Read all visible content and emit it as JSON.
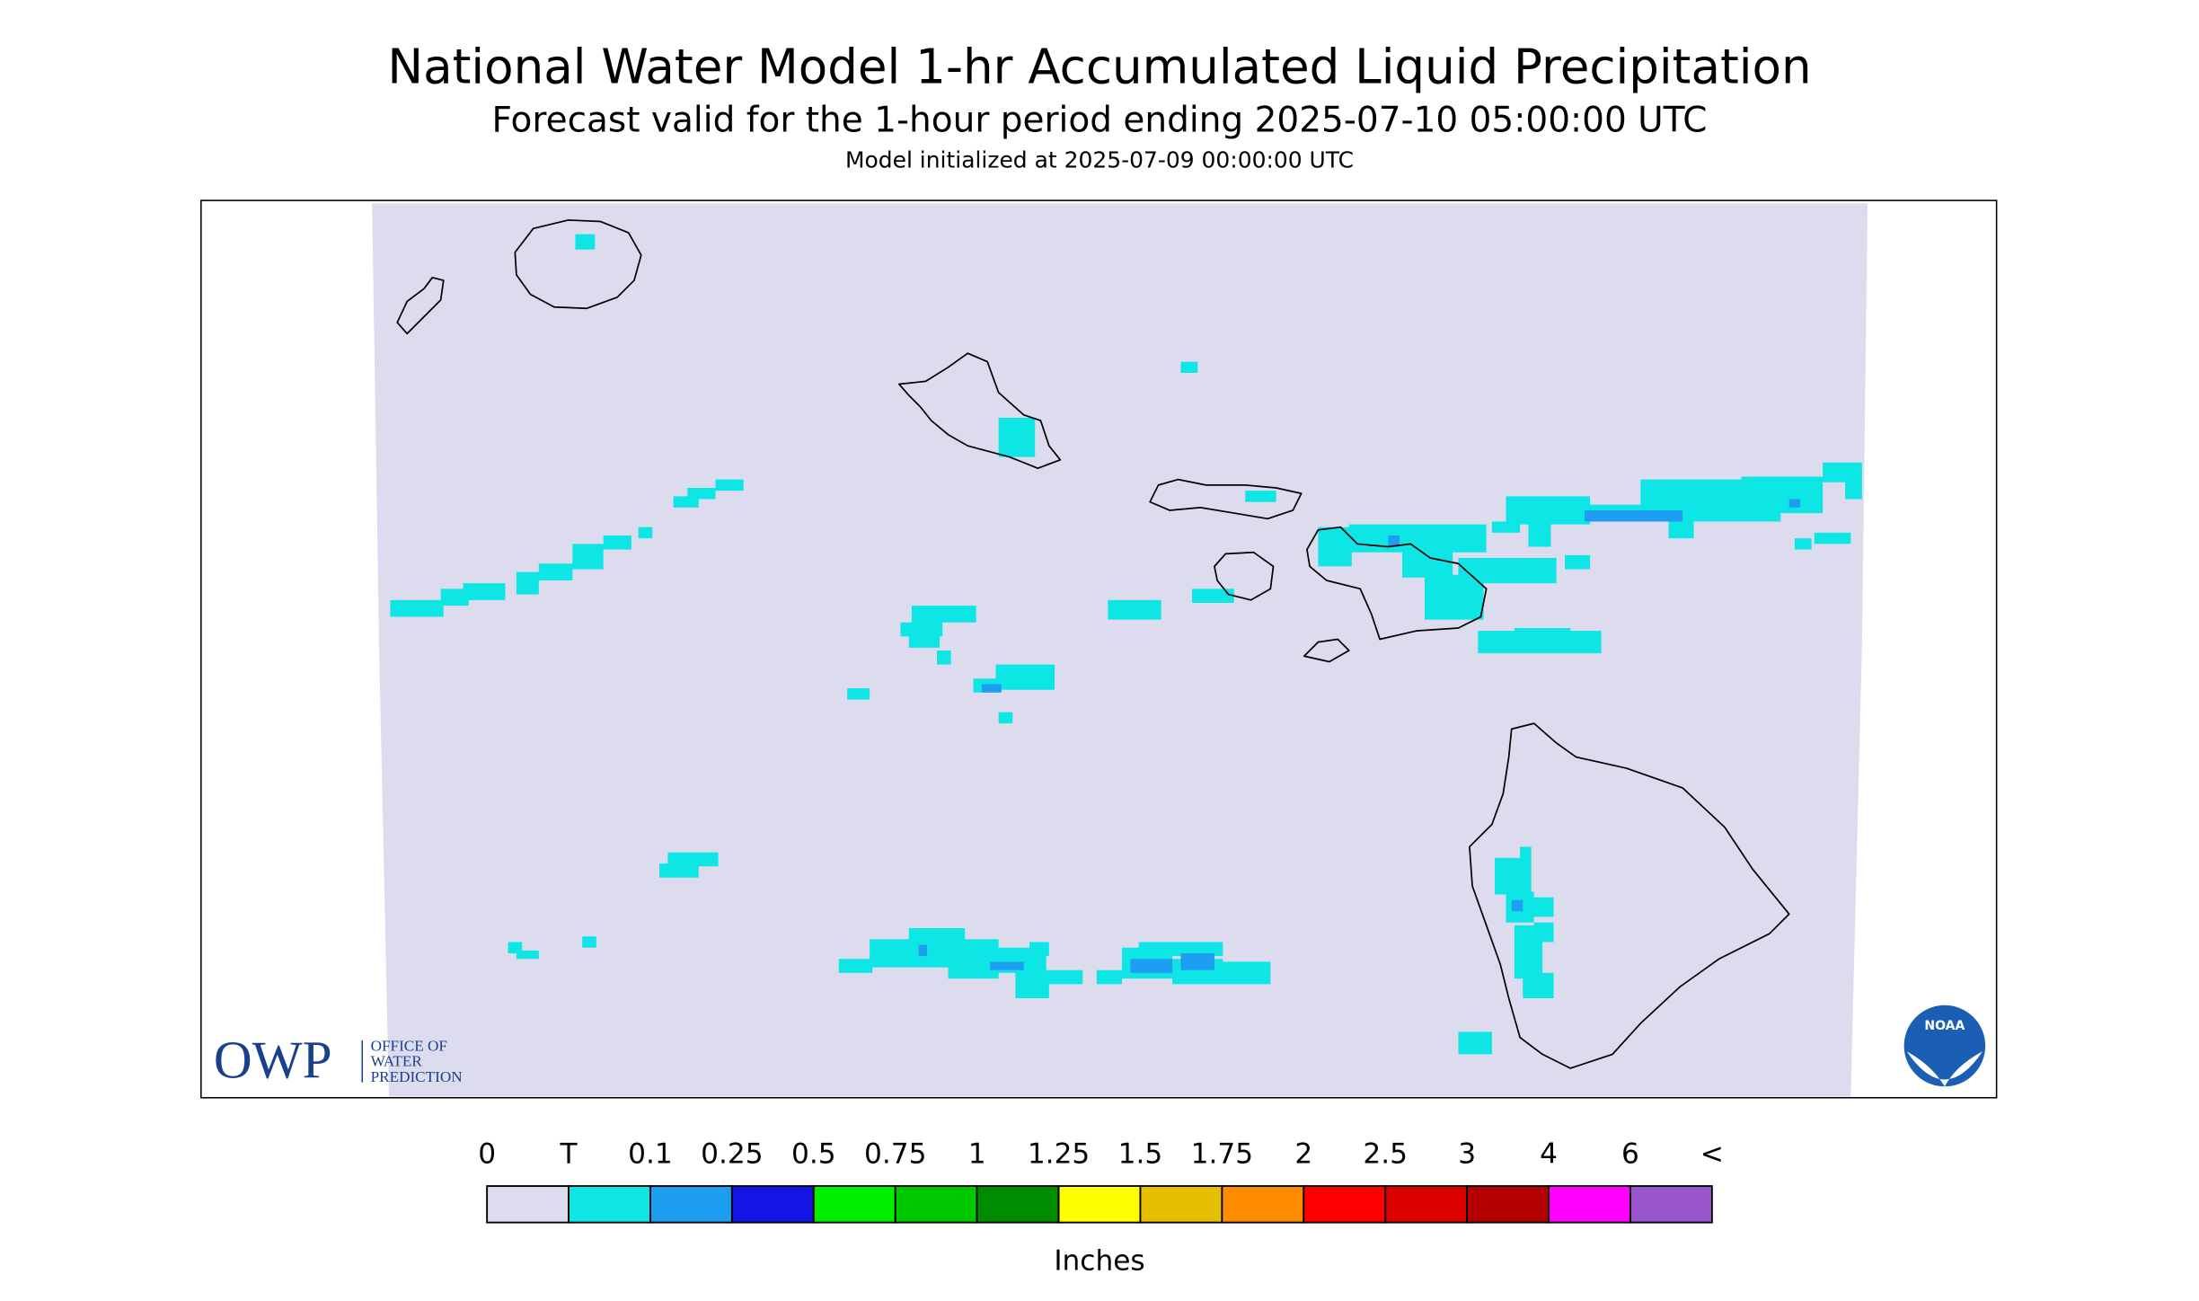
{
  "header": {
    "title": "National Water Model 1-hr Accumulated Liquid Precipitation",
    "subtitle": "Forecast valid for the 1-hour period ending 2025-07-10 05:00:00 UTC",
    "init": "Model initialized at 2025-07-09 00:00:00 UTC"
  },
  "legend": {
    "labels": [
      "0",
      "T",
      "0.1",
      "0.25",
      "0.5",
      "0.75",
      "1",
      "1.25",
      "1.5",
      "1.75",
      "2",
      "2.5",
      "3",
      "4",
      "6",
      "<"
    ],
    "colors": [
      "#dcdcee",
      "#0ee6e6",
      "#1e9ef0",
      "#1414e6",
      "#00f000",
      "#00c800",
      "#008c00",
      "#ffff00",
      "#e6c000",
      "#ff8c00",
      "#ff0000",
      "#dc0000",
      "#b40000",
      "#ff00ff",
      "#9955cc"
    ],
    "unit": "Inches"
  },
  "logos": {
    "owp": "OWP",
    "owp_lines": [
      "OFFICE OF",
      "WATER",
      "PREDICTION"
    ],
    "noaa": "NOAA"
  }
}
